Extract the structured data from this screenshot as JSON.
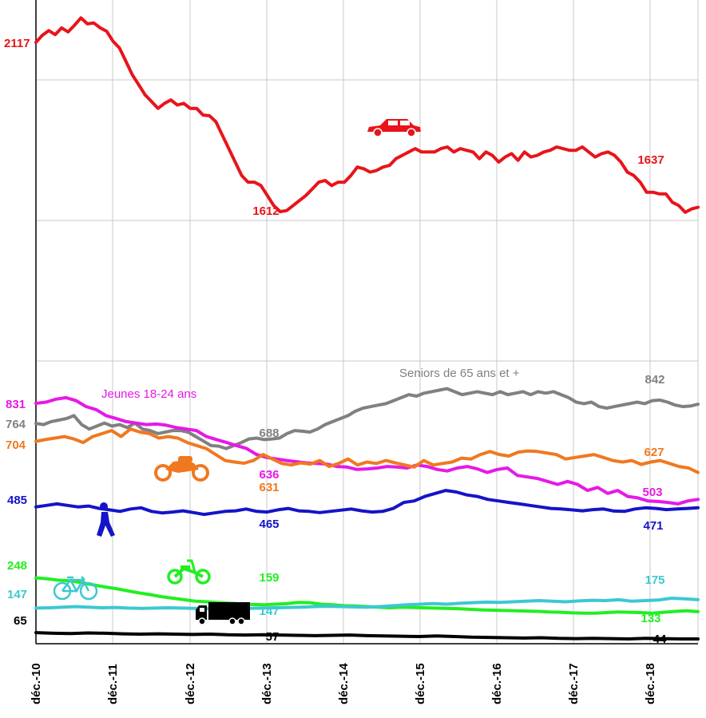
{
  "chart_data": {
    "type": "line",
    "x_ticks": [
      "déc.-10",
      "déc.-11",
      "déc.-12",
      "déc.-13",
      "déc.-14",
      "déc.-15",
      "déc.-16",
      "déc.-17",
      "déc.-18"
    ],
    "x_range": [
      0,
      104
    ],
    "grid": true,
    "panels": [
      {
        "name": "top",
        "ylim": [
          1200,
          2200
        ]
      },
      {
        "name": "bottom",
        "ylim": [
          0,
          1000
        ]
      }
    ],
    "series": [
      {
        "key": "car",
        "panel": "top",
        "color": "#e8141a",
        "icon": "car-icon",
        "values": [
          2117,
          2138,
          2152,
          2140,
          2160,
          2148,
          2168,
          2190,
          2172,
          2175,
          2160,
          2150,
          2120,
          2100,
          2060,
          2020,
          1990,
          1960,
          1940,
          1920,
          1935,
          1945,
          1930,
          1935,
          1920,
          1920,
          1900,
          1898,
          1880,
          1840,
          1800,
          1760,
          1720,
          1700,
          1700,
          1690,
          1660,
          1630,
          1612,
          1615,
          1630,
          1645,
          1660,
          1680,
          1700,
          1705,
          1690,
          1700,
          1700,
          1720,
          1745,
          1740,
          1730,
          1735,
          1745,
          1750,
          1770,
          1780,
          1790,
          1800,
          1790,
          1790,
          1790,
          1800,
          1805,
          1790,
          1800,
          1795,
          1790,
          1770,
          1790,
          1780,
          1760,
          1775,
          1785,
          1765,
          1790,
          1775,
          1780,
          1790,
          1795,
          1805,
          1800,
          1795,
          1795,
          1805,
          1790,
          1775,
          1785,
          1790,
          1780,
          1760,
          1730,
          1720,
          1700,
          1670,
          1670,
          1665,
          1665,
          1640,
          1630,
          1610,
          1620,
          1625
        ]
      },
      {
        "key": "seniors",
        "panel": "bottom",
        "color": "#808080",
        "title": "Seniors de 65 ans et +",
        "values": [
          764,
          760,
          770,
          775,
          780,
          790,
          760,
          745,
          755,
          765,
          755,
          760,
          750,
          765,
          745,
          740,
          730,
          735,
          740,
          740,
          735,
          720,
          705,
          690,
          688,
          680,
          690,
          700,
          712,
          715,
          710,
          712,
          715,
          730,
          740,
          738,
          735,
          745,
          760,
          770,
          780,
          790,
          805,
          815,
          820,
          825,
          830,
          840,
          850,
          860,
          855,
          865,
          870,
          875,
          880,
          870,
          860,
          865,
          870,
          865,
          860,
          870,
          860,
          865,
          870,
          860,
          870,
          865,
          870,
          860,
          850,
          835,
          830,
          835,
          820,
          815,
          820,
          825,
          830,
          835,
          830,
          840,
          842,
          835,
          825,
          820,
          822,
          828
        ]
      },
      {
        "key": "youth",
        "panel": "bottom",
        "color": "#e619e6",
        "title": "Jeunes 18-24 ans",
        "values": [
          831,
          835,
          845,
          850,
          840,
          820,
          810,
          790,
          780,
          770,
          765,
          760,
          762,
          758,
          750,
          745,
          740,
          720,
          710,
          700,
          690,
          680,
          660,
          650,
          645,
          640,
          636,
          632,
          630,
          628,
          620,
          618,
          610,
          612,
          615,
          620,
          618,
          615,
          625,
          620,
          610,
          605,
          615,
          620,
          612,
          600,
          610,
          615,
          590,
          585,
          580,
          570,
          560,
          570,
          560,
          540,
          550,
          530,
          540,
          520,
          515,
          505,
          503,
          500,
          495,
          505,
          510
        ]
      },
      {
        "key": "moto",
        "panel": "bottom",
        "color": "#f07820",
        "icon": "motorcycle-icon",
        "values": [
          704,
          710,
          715,
          720,
          712,
          700,
          720,
          730,
          740,
          720,
          745,
          735,
          730,
          715,
          720,
          715,
          700,
          690,
          680,
          660,
          640,
          635,
          631,
          640,
          660,
          645,
          630,
          625,
          632,
          628,
          640,
          620,
          630,
          645,
          625,
          635,
          630,
          640,
          632,
          625,
          618,
          640,
          625,
          630,
          635,
          648,
          645,
          660,
          670,
          660,
          655,
          668,
          672,
          670,
          665,
          660,
          645,
          650,
          655,
          660,
          650,
          640,
          635,
          640,
          627,
          635,
          640,
          630,
          620,
          615,
          600
        ]
      },
      {
        "key": "pedestrian",
        "panel": "bottom",
        "color": "#1414c8",
        "icon": "pedestrian-icon",
        "values": [
          485,
          490,
          495,
          490,
          485,
          488,
          480,
          475,
          470,
          478,
          482,
          470,
          465,
          468,
          472,
          466,
          460,
          465,
          470,
          472,
          478,
          470,
          468,
          475,
          480,
          472,
          470,
          466,
          470,
          474,
          478,
          472,
          468,
          470,
          480,
          500,
          505,
          520,
          530,
          540,
          535,
          525,
          520,
          510,
          505,
          500,
          495,
          490,
          485,
          480,
          478,
          475,
          472,
          476,
          478,
          471,
          470,
          478,
          482,
          480,
          476,
          478,
          480,
          482
        ]
      },
      {
        "key": "moped",
        "panel": "bottom",
        "color": "#22ee22",
        "icon": "moped-icon",
        "values": [
          248,
          245,
          240,
          238,
          232,
          225,
          218,
          212,
          205,
          198,
          192,
          185,
          180,
          175,
          170,
          168,
          165,
          163,
          161,
          159,
          158,
          160,
          162,
          166,
          165,
          160,
          158,
          155,
          154,
          152,
          150,
          148,
          150,
          149,
          148,
          147,
          146,
          145,
          143,
          141,
          140,
          139,
          138,
          137,
          136,
          134,
          133,
          131,
          130,
          130,
          132,
          134,
          133,
          132,
          130,
          133,
          136,
          138,
          135
        ]
      },
      {
        "key": "bicycle",
        "panel": "bottom",
        "color": "#3cc8d2",
        "icon": "bicycle-icon",
        "values": [
          147,
          148,
          150,
          152,
          150,
          148,
          149,
          147,
          146,
          147,
          148,
          147,
          146,
          145,
          144,
          145,
          146,
          147,
          148,
          149,
          150,
          152,
          153,
          152,
          151,
          150,
          152,
          155,
          158,
          160,
          162,
          160,
          163,
          165,
          167,
          166,
          168,
          170,
          172,
          170,
          168,
          171,
          173,
          172,
          175,
          170,
          172,
          174,
          180,
          178,
          175
        ]
      },
      {
        "key": "truck",
        "panel": "bottom",
        "color": "#000000",
        "icon": "truck-icon",
        "values": [
          65,
          63,
          62,
          64,
          63,
          61,
          60,
          61,
          60,
          59,
          60,
          58,
          57,
          58,
          57,
          56,
          55,
          56,
          57,
          55,
          54,
          53,
          52,
          54,
          52,
          50,
          49,
          48,
          47,
          48,
          46,
          45,
          46,
          45,
          44,
          46,
          45,
          44,
          44
        ]
      }
    ],
    "data_labels": [
      {
        "text": "2117",
        "series": "car"
      },
      {
        "text": "1612",
        "series": "car"
      },
      {
        "text": "1637",
        "series": "car"
      },
      {
        "text": "831",
        "series": "youth"
      },
      {
        "text": "636",
        "series": "youth"
      },
      {
        "text": "503",
        "series": "youth"
      },
      {
        "text": "764",
        "series": "seniors"
      },
      {
        "text": "688",
        "series": "seniors"
      },
      {
        "text": "842",
        "series": "seniors"
      },
      {
        "text": "704",
        "series": "moto"
      },
      {
        "text": "631",
        "series": "moto"
      },
      {
        "text": "627",
        "series": "moto"
      },
      {
        "text": "485",
        "series": "pedestrian"
      },
      {
        "text": "465",
        "series": "pedestrian"
      },
      {
        "text": "471",
        "series": "pedestrian"
      },
      {
        "text": "248",
        "series": "moped"
      },
      {
        "text": "159",
        "series": "moped"
      },
      {
        "text": "133",
        "series": "moped"
      },
      {
        "text": "147",
        "series": "bicycle"
      },
      {
        "text": "147",
        "series": "bicycle"
      },
      {
        "text": "175",
        "series": "bicycle"
      },
      {
        "text": "65",
        "series": "truck"
      },
      {
        "text": "57",
        "series": "truck"
      },
      {
        "text": "44",
        "series": "truck"
      }
    ]
  }
}
